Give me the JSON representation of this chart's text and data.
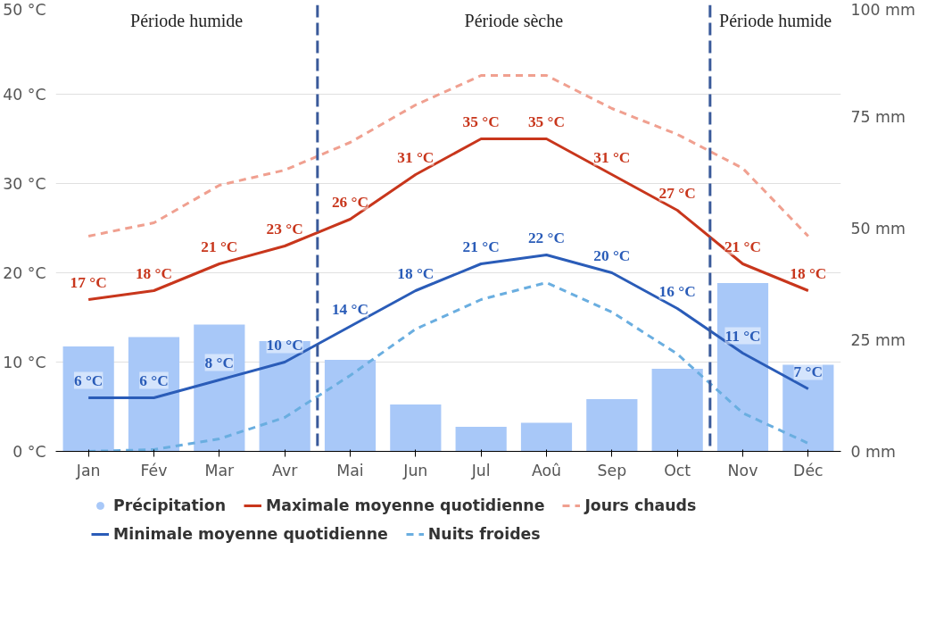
{
  "chart_data": {
    "type": "line",
    "categories": [
      "Jan",
      "Fév",
      "Mar",
      "Avr",
      "Mai",
      "Jun",
      "Jul",
      "Aoû",
      "Sep",
      "Oct",
      "Nov",
      "Déc"
    ],
    "ylim": [
      0,
      50
    ],
    "yticks": [
      {
        "value": 0,
        "label": "0 °C"
      },
      {
        "value": 10,
        "label": "10 °C"
      },
      {
        "value": 20,
        "label": "20 °C"
      },
      {
        "value": 30,
        "label": "30 °C"
      },
      {
        "value": 40,
        "label": "40 °C"
      },
      {
        "value": 50,
        "label": "50 °C"
      }
    ],
    "y2lim": [
      0,
      100
    ],
    "y2ticks": [
      {
        "value": 0,
        "label": "0 mm"
      },
      {
        "value": 25,
        "label": "25 mm"
      },
      {
        "value": 50,
        "label": "50 mm"
      },
      {
        "value": 75,
        "label": "75 mm"
      },
      {
        "value": 100,
        "label": "100 mm"
      }
    ],
    "grid": "y",
    "legend": "bottom",
    "marker": "none",
    "series": [
      {
        "name": "Précipitation",
        "type": "bar",
        "axis": "y2",
        "color": "#a8c8f8",
        "values": [
          23.5,
          25.6,
          28.4,
          24.7,
          20.5,
          10.5,
          5.5,
          6.4,
          11.7,
          18.5,
          37.7,
          19.4
        ]
      },
      {
        "name": "Maximale moyenne quotidienne",
        "color": "#c8361c",
        "line_style": "solid",
        "values": [
          17,
          18,
          21,
          23,
          26,
          31,
          35,
          35,
          31,
          27,
          21,
          18
        ],
        "value_labels": [
          "17 °C",
          "18 °C",
          "21 °C",
          "23 °C",
          "26 °C",
          "31 °C",
          "35 °C",
          "35 °C",
          "31 °C",
          "27 °C",
          "21 °C",
          "18 °C"
        ]
      },
      {
        "name": "Jours chauds",
        "color": "#f0a090",
        "line_style": "dashed",
        "values": [
          24.1,
          25.6,
          29.8,
          31.5,
          34.6,
          38.8,
          42.1,
          42.1,
          38.4,
          35.5,
          31.7,
          24.1
        ]
      },
      {
        "name": "Minimale moyenne quotidienne",
        "color": "#2a5cb8",
        "line_style": "solid",
        "values": [
          6,
          6,
          8,
          10,
          14,
          18,
          21,
          22,
          20,
          16,
          11,
          7
        ],
        "value_labels": [
          "6 °C",
          "6 °C",
          "8 °C",
          "10 °C",
          "14 °C",
          "18 °C",
          "21 °C",
          "22 °C",
          "20 °C",
          "16 °C",
          "11 °C",
          "7 °C"
        ]
      },
      {
        "name": "Nuits froides",
        "color": "#6aaee0",
        "line_style": "dashed",
        "values": [
          0,
          0.2,
          1.4,
          3.8,
          8.5,
          13.7,
          17,
          18.9,
          15.6,
          10.9,
          4.3,
          0.9
        ]
      }
    ],
    "annotations": [
      "Période humide",
      "Période sèche",
      "Période humide"
    ]
  }
}
